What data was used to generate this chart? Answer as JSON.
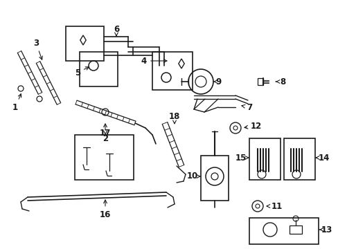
{
  "background_color": "#ffffff",
  "fig_width": 4.89,
  "fig_height": 3.6,
  "dpi": 100,
  "line_color": "#1a1a1a",
  "label_fontsize": 8.5,
  "label_fontsize_small": 7.5
}
